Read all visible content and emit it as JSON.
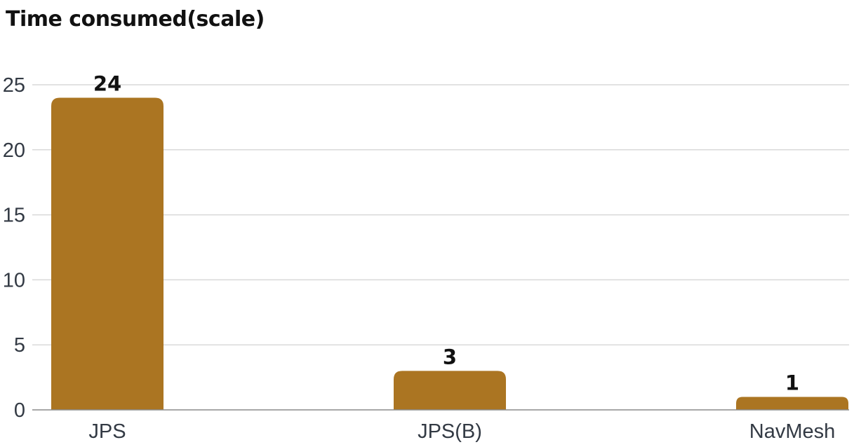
{
  "chart_data": {
    "type": "bar",
    "title": "Time consumed(scale)",
    "xlabel": "",
    "ylabel": "",
    "categories": [
      "JPS",
      "JPS(B)",
      "NavMesh"
    ],
    "values": [
      24,
      3,
      1
    ],
    "data_labels": [
      "24",
      "3",
      "1"
    ],
    "ylim": [
      0,
      25
    ],
    "yticks": [
      0,
      5,
      10,
      15,
      20,
      25
    ],
    "ytick_labels": [
      "0",
      "5",
      "10",
      "15",
      "20",
      "25"
    ],
    "grid": true,
    "legend": "none",
    "bar_color": "#ab7522"
  }
}
